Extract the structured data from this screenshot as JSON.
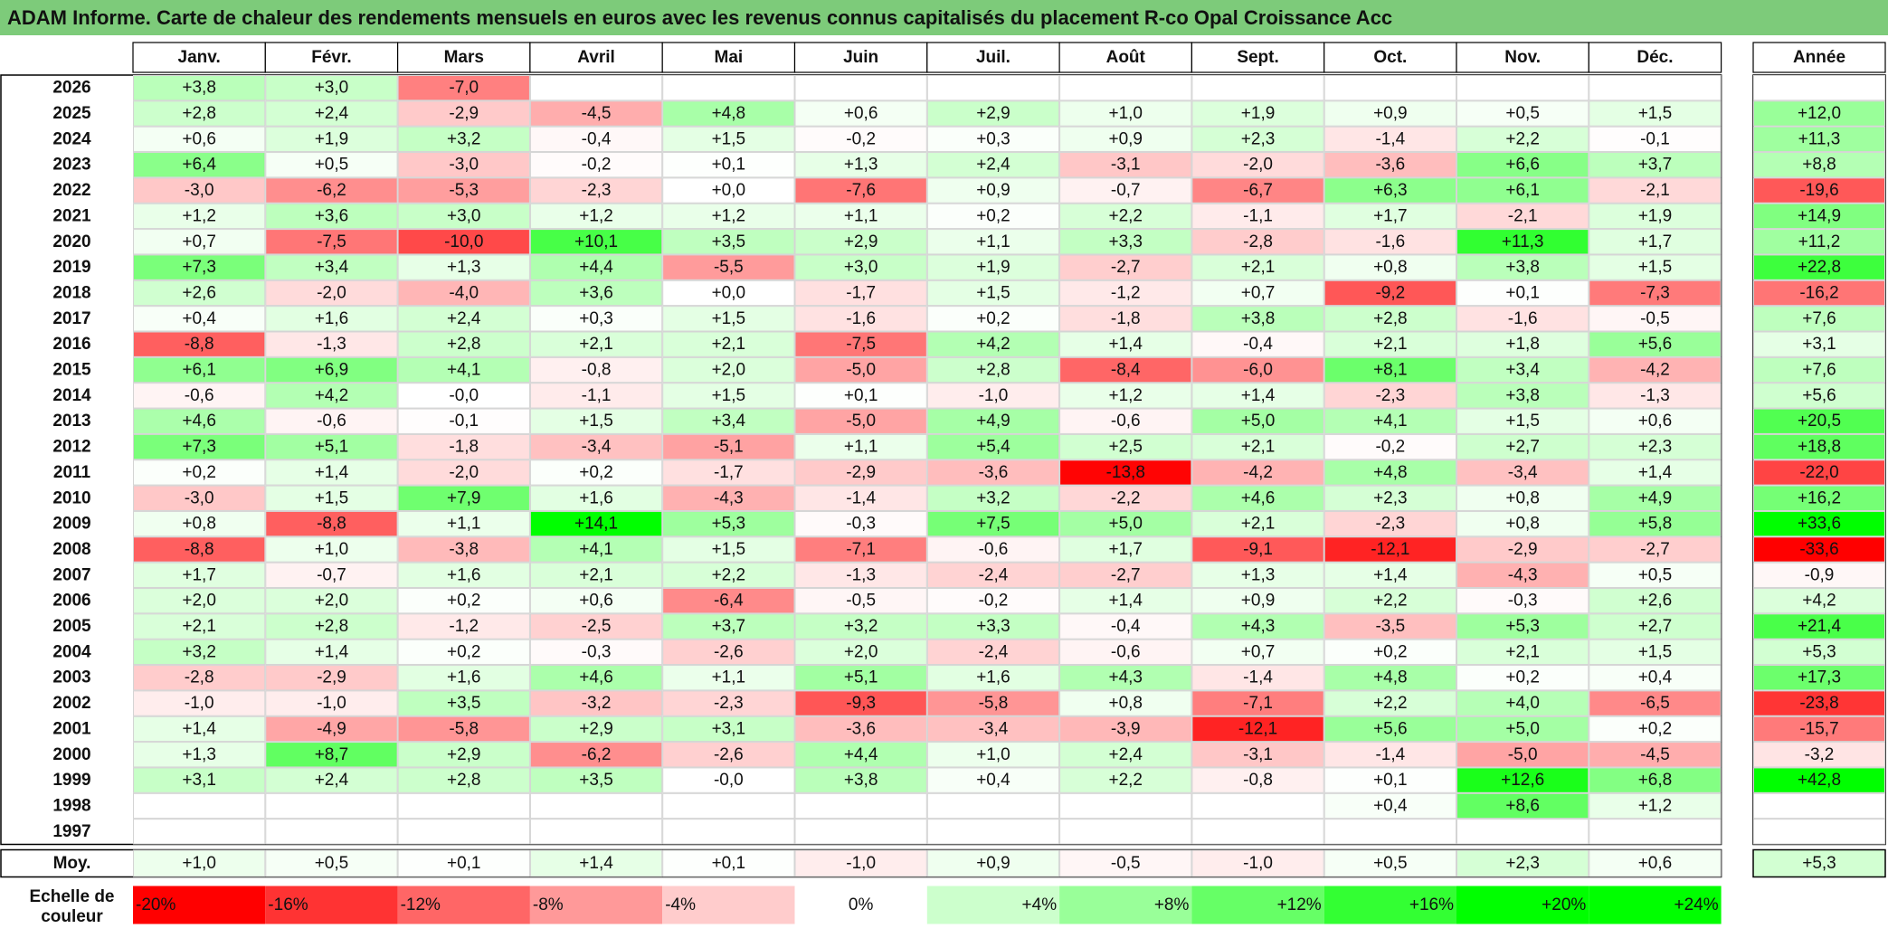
{
  "title": "ADAM Informe. Carte de chaleur des rendements mensuels en euros avec les revenus connus capitalisés du placement R-co Opal Croissance Acc",
  "colors": {
    "title_bg": "#7dcb7a",
    "positive": "#00ff00",
    "negative": "#ff0000",
    "neutral": "#ffffff"
  },
  "chart_data": {
    "type": "heatmap",
    "months": [
      "Janv.",
      "Févr.",
      "Mars",
      "Avril",
      "Mai",
      "Juin",
      "Juil.",
      "Août",
      "Sept.",
      "Oct.",
      "Nov.",
      "Déc."
    ],
    "year_header": "Année",
    "rows": [
      {
        "year": "2026",
        "months": [
          "+3,8",
          "+3,0",
          "-7,0",
          "",
          "",
          "",
          "",
          "",
          "",
          "",
          "",
          ""
        ],
        "annual": ""
      },
      {
        "year": "2025",
        "months": [
          "+2,8",
          "+2,4",
          "-2,9",
          "-4,5",
          "+4,8",
          "+0,6",
          "+2,9",
          "+1,0",
          "+1,9",
          "+0,9",
          "+0,5",
          "+1,5"
        ],
        "annual": "+12,0"
      },
      {
        "year": "2024",
        "months": [
          "+0,6",
          "+1,9",
          "+3,2",
          "-0,4",
          "+1,5",
          "-0,2",
          "+0,3",
          "+0,9",
          "+2,3",
          "-1,4",
          "+2,2",
          "-0,1"
        ],
        "annual": "+11,3"
      },
      {
        "year": "2023",
        "months": [
          "+6,4",
          "+0,5",
          "-3,0",
          "-0,2",
          "+0,1",
          "+1,3",
          "+2,4",
          "-3,1",
          "-2,0",
          "-3,6",
          "+6,6",
          "+3,7"
        ],
        "annual": "+8,8"
      },
      {
        "year": "2022",
        "months": [
          "-3,0",
          "-6,2",
          "-5,3",
          "-2,3",
          "+0,0",
          "-7,6",
          "+0,9",
          "-0,7",
          "-6,7",
          "+6,3",
          "+6,1",
          "-2,1"
        ],
        "annual": "-19,6"
      },
      {
        "year": "2021",
        "months": [
          "+1,2",
          "+3,6",
          "+3,0",
          "+1,2",
          "+1,2",
          "+1,1",
          "+0,2",
          "+2,2",
          "-1,1",
          "+1,7",
          "-2,1",
          "+1,9"
        ],
        "annual": "+14,9"
      },
      {
        "year": "2020",
        "months": [
          "+0,7",
          "-7,5",
          "-10,0",
          "+10,1",
          "+3,5",
          "+2,9",
          "+1,1",
          "+3,3",
          "-2,8",
          "-1,6",
          "+11,3",
          "+1,7"
        ],
        "annual": "+11,2"
      },
      {
        "year": "2019",
        "months": [
          "+7,3",
          "+3,4",
          "+1,3",
          "+4,4",
          "-5,5",
          "+3,0",
          "+1,9",
          "-2,7",
          "+2,1",
          "+0,8",
          "+3,8",
          "+1,5"
        ],
        "annual": "+22,8"
      },
      {
        "year": "2018",
        "months": [
          "+2,6",
          "-2,0",
          "-4,0",
          "+3,6",
          "+0,0",
          "-1,7",
          "+1,5",
          "-1,2",
          "+0,7",
          "-9,2",
          "+0,1",
          "-7,3"
        ],
        "annual": "-16,2"
      },
      {
        "year": "2017",
        "months": [
          "+0,4",
          "+1,6",
          "+2,4",
          "+0,3",
          "+1,5",
          "-1,6",
          "+0,2",
          "-1,8",
          "+3,8",
          "+2,8",
          "-1,6",
          "-0,5"
        ],
        "annual": "+7,6"
      },
      {
        "year": "2016",
        "months": [
          "-8,8",
          "-1,3",
          "+2,8",
          "+2,1",
          "+2,1",
          "-7,5",
          "+4,2",
          "+1,4",
          "-0,4",
          "+2,1",
          "+1,8",
          "+5,6"
        ],
        "annual": "+3,1"
      },
      {
        "year": "2015",
        "months": [
          "+6,1",
          "+6,9",
          "+4,1",
          "-0,8",
          "+2,0",
          "-5,0",
          "+2,8",
          "-8,4",
          "-6,0",
          "+8,1",
          "+3,4",
          "-4,2"
        ],
        "annual": "+7,6"
      },
      {
        "year": "2014",
        "months": [
          "-0,6",
          "+4,2",
          "-0,0",
          "-1,1",
          "+1,5",
          "+0,1",
          "-1,0",
          "+1,2",
          "+1,4",
          "-2,3",
          "+3,8",
          "-1,3"
        ],
        "annual": "+5,6"
      },
      {
        "year": "2013",
        "months": [
          "+4,6",
          "-0,6",
          "-0,1",
          "+1,5",
          "+3,4",
          "-5,0",
          "+4,9",
          "-0,6",
          "+5,0",
          "+4,1",
          "+1,5",
          "+0,6"
        ],
        "annual": "+20,5"
      },
      {
        "year": "2012",
        "months": [
          "+7,3",
          "+5,1",
          "-1,8",
          "-3,4",
          "-5,1",
          "+1,1",
          "+5,4",
          "+2,5",
          "+2,1",
          "-0,2",
          "+2,7",
          "+2,3"
        ],
        "annual": "+18,8"
      },
      {
        "year": "2011",
        "months": [
          "+0,2",
          "+1,4",
          "-2,0",
          "+0,2",
          "-1,7",
          "-2,9",
          "-3,6",
          "-13,8",
          "-4,2",
          "+4,8",
          "-3,4",
          "+1,4"
        ],
        "annual": "-22,0"
      },
      {
        "year": "2010",
        "months": [
          "-3,0",
          "+1,5",
          "+7,9",
          "+1,6",
          "-4,3",
          "-1,4",
          "+3,2",
          "-2,2",
          "+4,6",
          "+2,3",
          "+0,8",
          "+4,9"
        ],
        "annual": "+16,2"
      },
      {
        "year": "2009",
        "months": [
          "+0,8",
          "-8,8",
          "+1,1",
          "+14,1",
          "+5,3",
          "-0,3",
          "+7,5",
          "+5,0",
          "+2,1",
          "-2,3",
          "+0,8",
          "+5,8"
        ],
        "annual": "+33,6"
      },
      {
        "year": "2008",
        "months": [
          "-8,8",
          "+1,0",
          "-3,8",
          "+4,1",
          "+1,5",
          "-7,1",
          "-0,6",
          "+1,7",
          "-9,1",
          "-12,1",
          "-2,9",
          "-2,7"
        ],
        "annual": "-33,6"
      },
      {
        "year": "2007",
        "months": [
          "+1,7",
          "-0,7",
          "+1,6",
          "+2,1",
          "+2,2",
          "-1,3",
          "-2,4",
          "-2,7",
          "+1,3",
          "+1,4",
          "-4,3",
          "+0,5"
        ],
        "annual": "-0,9"
      },
      {
        "year": "2006",
        "months": [
          "+2,0",
          "+2,0",
          "+0,2",
          "+0,6",
          "-6,4",
          "-0,5",
          "-0,2",
          "+1,4",
          "+0,9",
          "+2,2",
          "-0,3",
          "+2,6"
        ],
        "annual": "+4,2"
      },
      {
        "year": "2005",
        "months": [
          "+2,1",
          "+2,8",
          "-1,2",
          "-2,5",
          "+3,7",
          "+3,2",
          "+3,3",
          "-0,4",
          "+4,3",
          "-3,5",
          "+5,3",
          "+2,7"
        ],
        "annual": "+21,4"
      },
      {
        "year": "2004",
        "months": [
          "+3,2",
          "+1,4",
          "+0,2",
          "-0,3",
          "-2,6",
          "+2,0",
          "-2,4",
          "-0,6",
          "+0,7",
          "+0,2",
          "+2,1",
          "+1,5"
        ],
        "annual": "+5,3"
      },
      {
        "year": "2003",
        "months": [
          "-2,8",
          "-2,9",
          "+1,6",
          "+4,6",
          "+1,1",
          "+5,1",
          "+1,6",
          "+4,3",
          "-1,4",
          "+4,8",
          "+0,2",
          "+0,4"
        ],
        "annual": "+17,3"
      },
      {
        "year": "2002",
        "months": [
          "-1,0",
          "-1,0",
          "+3,5",
          "-3,2",
          "-2,3",
          "-9,3",
          "-5,8",
          "+0,8",
          "-7,1",
          "+2,2",
          "+4,0",
          "-6,5"
        ],
        "annual": "-23,8"
      },
      {
        "year": "2001",
        "months": [
          "+1,4",
          "-4,9",
          "-5,8",
          "+2,9",
          "+3,1",
          "-3,6",
          "-3,4",
          "-3,9",
          "-12,1",
          "+5,6",
          "+5,0",
          "+0,2"
        ],
        "annual": "-15,7"
      },
      {
        "year": "2000",
        "months": [
          "+1,3",
          "+8,7",
          "+2,9",
          "-6,2",
          "-2,6",
          "+4,4",
          "+1,0",
          "+2,4",
          "-3,1",
          "-1,4",
          "-5,0",
          "-4,5"
        ],
        "annual": "-3,2"
      },
      {
        "year": "1999",
        "months": [
          "+3,1",
          "+2,4",
          "+2,8",
          "+3,5",
          "-0,0",
          "+3,8",
          "+0,4",
          "+2,2",
          "-0,8",
          "+0,1",
          "+12,6",
          "+6,8"
        ],
        "annual": "+42,8"
      },
      {
        "year": "1998",
        "months": [
          "",
          "",
          "",
          "",
          "",
          "",
          "",
          "",
          "",
          "+0,4",
          "+8,6",
          "+1,2"
        ],
        "annual": ""
      },
      {
        "year": "1997",
        "months": [
          "",
          "",
          "",
          "",
          "",
          "",
          "",
          "",
          "",
          "",
          "",
          ""
        ],
        "annual": ""
      }
    ],
    "average": {
      "label": "Moy.",
      "months": [
        "+1,0",
        "+0,5",
        "+0,1",
        "+1,4",
        "+0,1",
        "-1,0",
        "+0,9",
        "-0,5",
        "-1,0",
        "+0,5",
        "+2,3",
        "+0,6"
      ],
      "annual": "+5,3"
    },
    "scale": {
      "label_line1": "Echelle de",
      "label_line2": "couleur",
      "steps": [
        "-20%",
        "-16%",
        "-12%",
        "-8%",
        "-4%",
        "0%",
        "+4%",
        "+8%",
        "+12%",
        "+16%",
        "+20%",
        "+24%"
      ]
    }
  }
}
